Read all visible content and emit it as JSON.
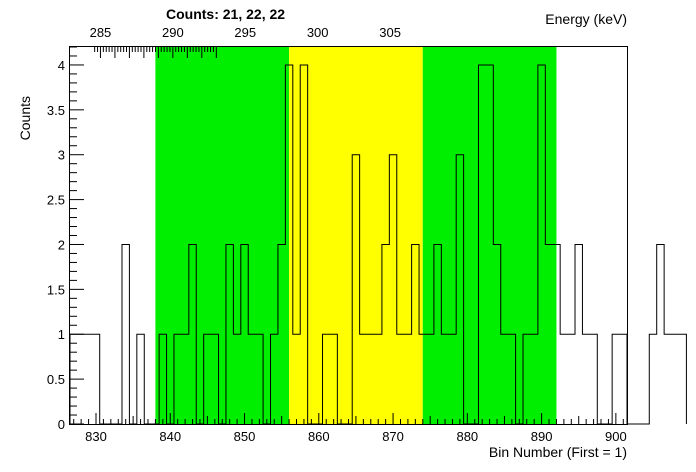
{
  "chart_data": {
    "type": "histogram",
    "title": "Counts:   21,   22,   22",
    "xlabel": "Bin Number (First = 1)",
    "ylabel": "Counts",
    "x2label": "Energy (keV)",
    "xlim": [
      826.5,
      901.5
    ],
    "ylim": [
      0,
      4.2
    ],
    "x_ticks": [
      830,
      840,
      850,
      860,
      870,
      880,
      890,
      900
    ],
    "y_ticks": [
      0,
      0.5,
      1,
      1.5,
      2,
      2.5,
      3,
      3.5,
      4
    ],
    "y_tick_labels": [
      "0",
      "0.5",
      "1",
      "1.5",
      "2",
      "2.5",
      "3",
      "3.5",
      "4"
    ],
    "energy_ticks": [
      285,
      290,
      295,
      300,
      305
    ],
    "energy_tick_bins": [
      830.6,
      840.35,
      850.1,
      859.85,
      869.6
    ],
    "energy_minor_step_bins": 1.95,
    "regions": [
      {
        "name": "left-background",
        "x_start": 838,
        "x_end": 856,
        "color": "#00ee00"
      },
      {
        "name": "peak",
        "x_start": 856,
        "x_end": 874,
        "color": "#ffff00"
      },
      {
        "name": "right-background",
        "x_start": 874,
        "x_end": 892,
        "color": "#00ee00"
      }
    ],
    "bin_start": 827,
    "bin_width": 1,
    "values": [
      1,
      1,
      1,
      1,
      0,
      0,
      0,
      2,
      0,
      1,
      0,
      0,
      1,
      0,
      1,
      1,
      2,
      0,
      1,
      1,
      0,
      2,
      1,
      2,
      1,
      1,
      0,
      1,
      2,
      4,
      1,
      4,
      0,
      0,
      1,
      1,
      0,
      0,
      3,
      1,
      1,
      1,
      2,
      3,
      1,
      1,
      2,
      1,
      1,
      2,
      1,
      1,
      3,
      0,
      0,
      4,
      4,
      2,
      1,
      1,
      0,
      1,
      1,
      4,
      2,
      2,
      1,
      1,
      2,
      1,
      1,
      0,
      0,
      1,
      1,
      0,
      0,
      0,
      1,
      2,
      1,
      1,
      1
    ]
  }
}
